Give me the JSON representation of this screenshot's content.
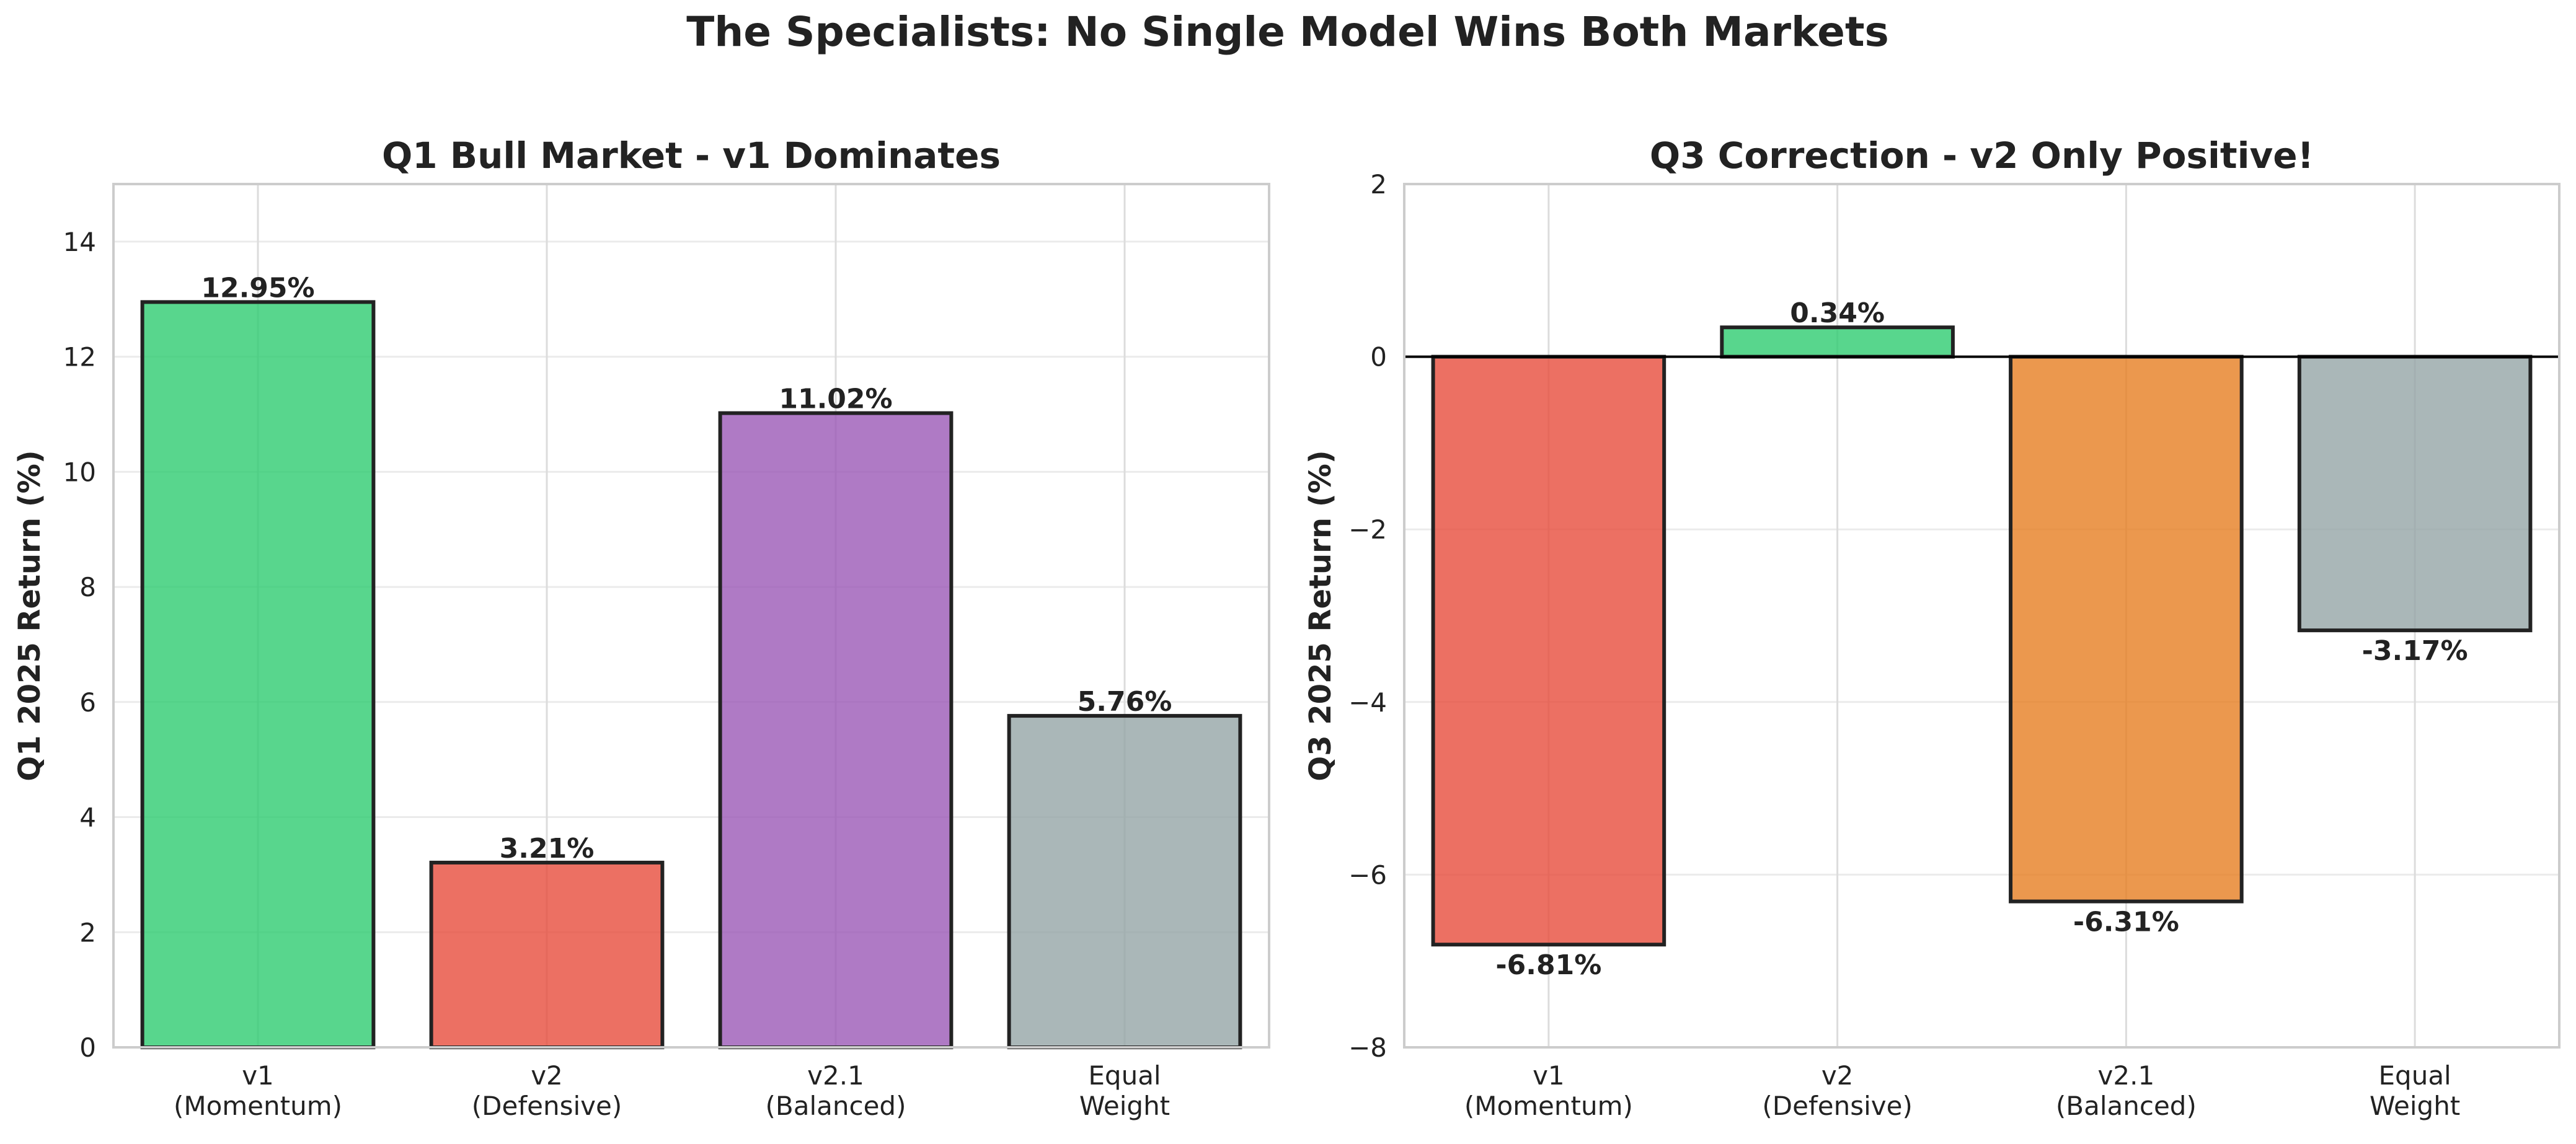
{
  "figure_title": "The Specialists: No Single Model Wins Both Markets",
  "chart_data": [
    {
      "type": "bar",
      "title": "Q1 Bull Market - v1 Dominates",
      "xlabel": "",
      "ylabel": "Q1 2025 Return (%)",
      "categories": [
        [
          "v1",
          "(Momentum)"
        ],
        [
          "v2",
          "(Defensive)"
        ],
        [
          "v2.1",
          "(Balanced)"
        ],
        [
          "Equal",
          "Weight"
        ]
      ],
      "values": [
        12.95,
        3.21,
        11.02,
        5.76
      ],
      "value_labels": [
        "12.95%",
        "3.21%",
        "11.02%",
        "5.76%"
      ],
      "colors": [
        "#2ecc71",
        "#e74c3c",
        "#9b59b6",
        "#95a5a6"
      ],
      "ylim": [
        0,
        15
      ],
      "yticks": [
        0,
        2,
        4,
        6,
        8,
        10,
        12,
        14
      ],
      "ytick_labels": [
        "0",
        "2",
        "4",
        "6",
        "8",
        "10",
        "12",
        "14"
      ],
      "grid": true,
      "zero_line": false
    },
    {
      "type": "bar",
      "title": "Q3 Correction - v2 Only Positive!",
      "xlabel": "",
      "ylabel": "Q3 2025 Return (%)",
      "categories": [
        [
          "v1",
          "(Momentum)"
        ],
        [
          "v2",
          "(Defensive)"
        ],
        [
          "v2.1",
          "(Balanced)"
        ],
        [
          "Equal",
          "Weight"
        ]
      ],
      "values": [
        -6.81,
        0.34,
        -6.31,
        -3.17
      ],
      "value_labels": [
        "-6.81%",
        "0.34%",
        "-6.31%",
        "-3.17%"
      ],
      "colors": [
        "#e74c3c",
        "#2ecc71",
        "#e67e22",
        "#95a5a6"
      ],
      "ylim": [
        -8,
        2
      ],
      "yticks": [
        -8,
        -6,
        -4,
        -2,
        0,
        2
      ],
      "ytick_labels": [
        "−8",
        "−6",
        "−4",
        "−2",
        "0",
        "2"
      ],
      "grid": true,
      "zero_line": true
    }
  ]
}
